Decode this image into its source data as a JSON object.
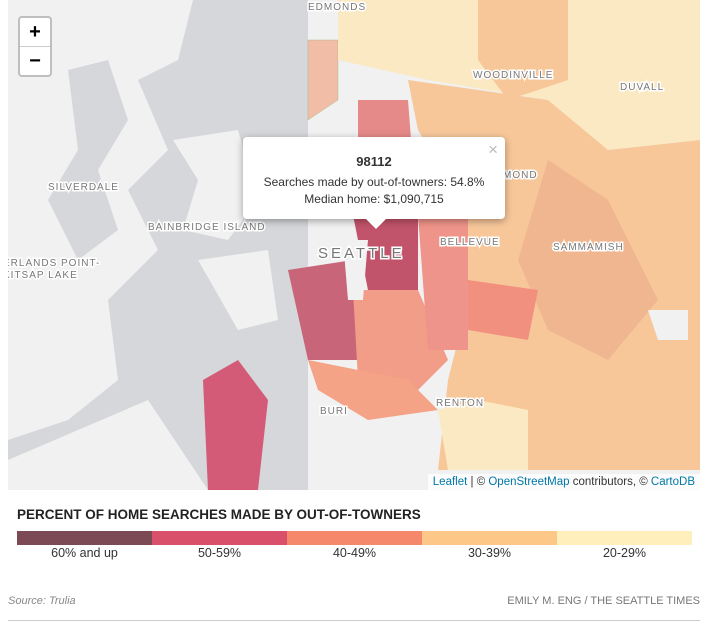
{
  "map": {
    "zoom_in": "+",
    "zoom_out": "−",
    "place_labels": [
      "EDMONDS",
      "WOODINVILLE",
      "DUVALL",
      "SILVERDALE",
      "BAINBRIDGE ISLAND",
      "SEATTLE",
      "ERLANDS POINT-",
      "KITSAP LAKE",
      "BELLEVUE",
      "MOND",
      "SAMMAMISH",
      "RENTON",
      "BURI"
    ],
    "popup": {
      "zip": "98112",
      "line1": "Searches made by out-of-towners: 54.8%",
      "line2": "Median home: $1,090,715",
      "close": "×"
    },
    "attribution": {
      "leaflet": "Leaflet",
      "sep1": " | © ",
      "osm": "OpenStreetMap",
      "sep2": " contributors, © ",
      "carto": "CartoDB"
    }
  },
  "legend": {
    "title": "PERCENT OF HOME SEARCHES MADE BY OUT-OF-TOWNERS",
    "items": [
      {
        "label": "60% and up",
        "color": "#7b4a55"
      },
      {
        "label": "50-59%",
        "color": "#d9506a"
      },
      {
        "label": "40-49%",
        "color": "#f5876b"
      },
      {
        "label": "30-39%",
        "color": "#fcc787"
      },
      {
        "label": "20-29%",
        "color": "#feefbd"
      }
    ]
  },
  "footer": {
    "source": "Source: Trulia",
    "credit": "EMILY M. ENG / THE SEATTLE TIMES"
  }
}
